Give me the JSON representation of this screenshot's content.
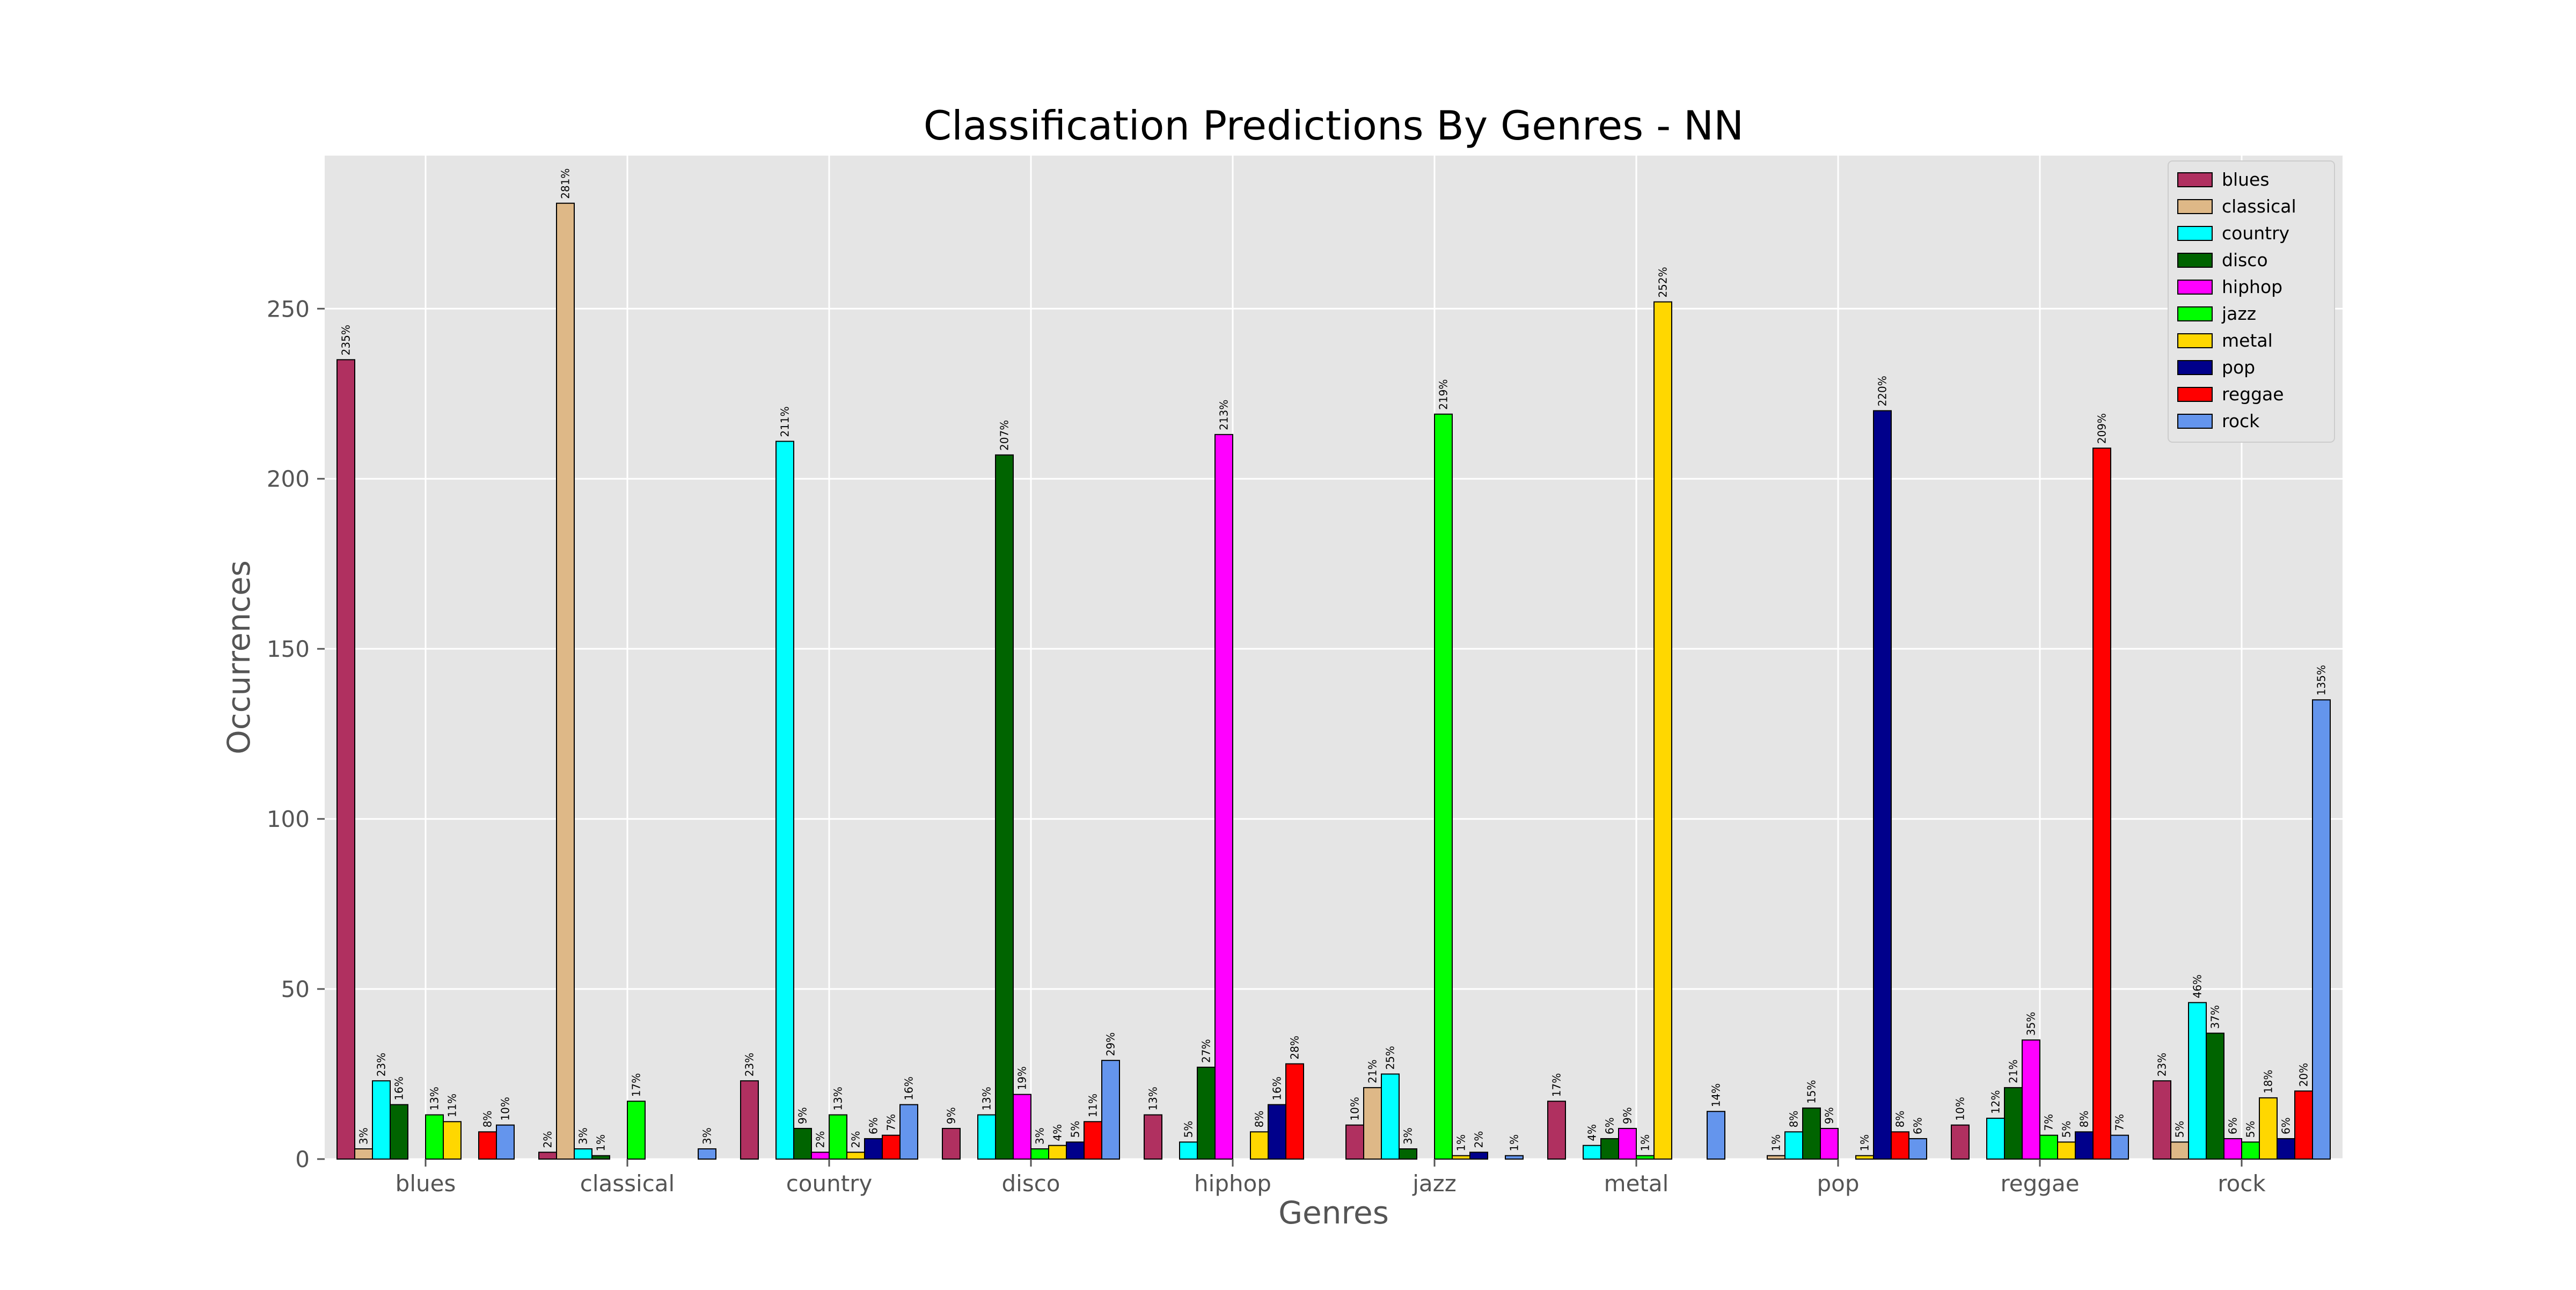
{
  "chart_data": {
    "type": "bar",
    "title": "Classification Predictions By Genres - NN",
    "xlabel": "Genres",
    "ylabel": "Occurrences",
    "ylim": [
      0,
      295
    ],
    "yticks": [
      0,
      50,
      100,
      150,
      200,
      250
    ],
    "grid": true,
    "legend_position": "top-right",
    "categories": [
      "blues",
      "classical",
      "country",
      "disco",
      "hiphop",
      "jazz",
      "metal",
      "pop",
      "reggae",
      "rock"
    ],
    "series": [
      {
        "name": "blues",
        "color": "#b03060",
        "values": [
          235,
          2,
          23,
          9,
          13,
          10,
          17,
          0,
          10,
          23
        ],
        "labels": [
          "235%",
          "2%",
          "23%",
          "9%",
          "13%",
          "10%",
          "17%",
          "",
          "10%",
          "23%"
        ]
      },
      {
        "name": "classical",
        "color": "#deb887",
        "values": [
          3,
          281,
          0,
          0,
          0,
          21,
          0,
          1,
          0,
          5
        ],
        "labels": [
          "3%",
          "281%",
          "",
          "",
          "",
          "21%",
          "",
          "1%",
          "",
          "5%"
        ]
      },
      {
        "name": "country",
        "color": "#00ffff",
        "values": [
          23,
          3,
          211,
          13,
          5,
          25,
          4,
          8,
          12,
          46
        ],
        "labels": [
          "23%",
          "3%",
          "211%",
          "13%",
          "5%",
          "25%",
          "4%",
          "8%",
          "12%",
          "46%"
        ]
      },
      {
        "name": "disco",
        "color": "#006400",
        "values": [
          16,
          1,
          9,
          207,
          27,
          3,
          6,
          15,
          21,
          37
        ],
        "labels": [
          "16%",
          "1%",
          "9%",
          "207%",
          "27%",
          "3%",
          "6%",
          "15%",
          "21%",
          "37%"
        ]
      },
      {
        "name": "hiphop",
        "color": "#ff00ff",
        "values": [
          0,
          0,
          2,
          19,
          213,
          0,
          9,
          9,
          35,
          6
        ],
        "labels": [
          "",
          "",
          "2%",
          "19%",
          "213%",
          "",
          "9%",
          "9%",
          "35%",
          "6%"
        ]
      },
      {
        "name": "jazz",
        "color": "#00ff00",
        "values": [
          13,
          17,
          13,
          3,
          0,
          219,
          1,
          0,
          7,
          5
        ],
        "labels": [
          "13%",
          "17%",
          "13%",
          "3%",
          "",
          "219%",
          "1%",
          "",
          "7%",
          "5%"
        ]
      },
      {
        "name": "metal",
        "color": "#ffd700",
        "values": [
          11,
          0,
          2,
          4,
          8,
          1,
          252,
          1,
          5,
          18
        ],
        "labels": [
          "11%",
          "",
          "2%",
          "4%",
          "8%",
          "1%",
          "252%",
          "1%",
          "5%",
          "18%"
        ]
      },
      {
        "name": "pop",
        "color": "#00008b",
        "values": [
          0,
          0,
          6,
          5,
          16,
          2,
          0,
          220,
          8,
          6
        ],
        "labels": [
          "",
          "",
          "6%",
          "5%",
          "16%",
          "2%",
          "",
          "220%",
          "8%",
          "6%"
        ]
      },
      {
        "name": "reggae",
        "color": "#ff0000",
        "values": [
          8,
          0,
          7,
          11,
          28,
          0,
          0,
          8,
          209,
          20
        ],
        "labels": [
          "8%",
          "",
          "7%",
          "11%",
          "28%",
          "",
          "",
          "8%",
          "209%",
          "20%"
        ]
      },
      {
        "name": "rock",
        "color": "#6495ed",
        "values": [
          10,
          3,
          16,
          29,
          0,
          1,
          14,
          6,
          7,
          135
        ],
        "labels": [
          "10%",
          "3%",
          "16%",
          "29%",
          "",
          "1%",
          "14%",
          "6%",
          "7%",
          "135%"
        ]
      }
    ]
  }
}
